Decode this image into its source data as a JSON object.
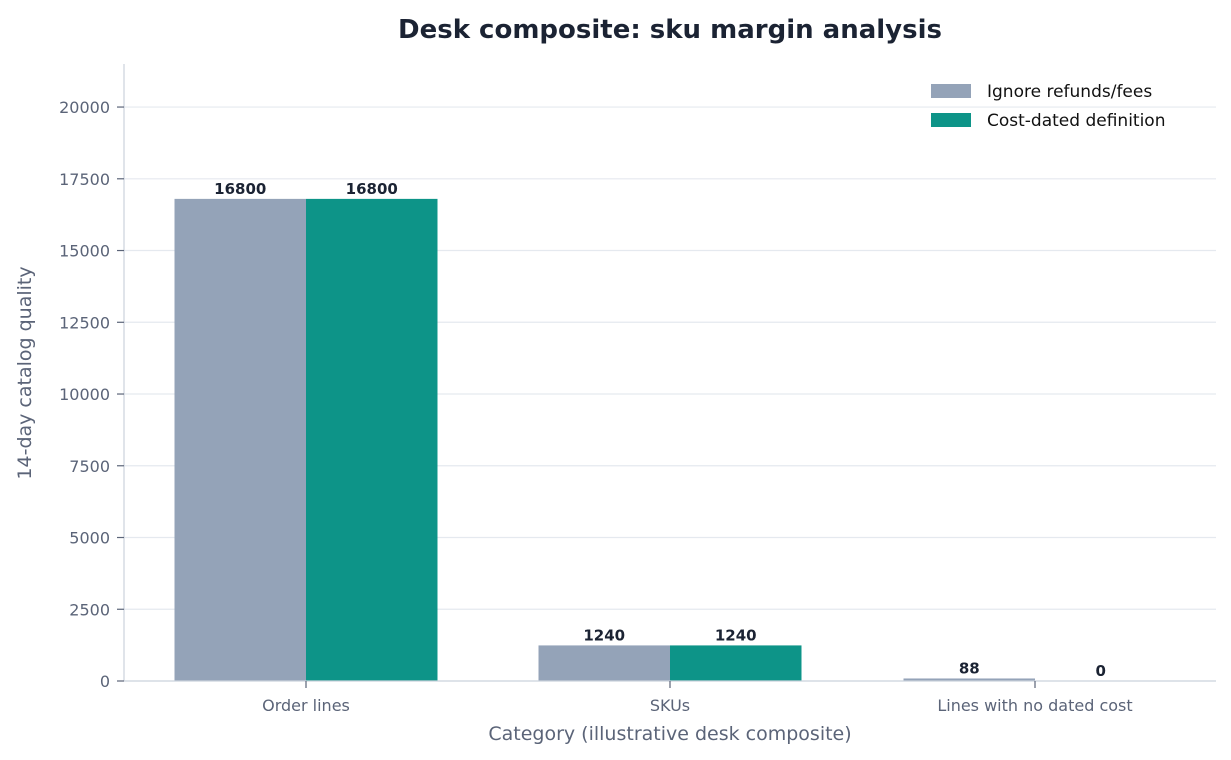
{
  "chart_data": {
    "type": "bar",
    "title": "Desk composite: sku margin analysis",
    "xlabel": "Category (illustrative desk composite)",
    "ylabel": "14-day catalog quality",
    "categories": [
      "Order lines",
      "SKUs",
      "Lines with no dated cost"
    ],
    "series": [
      {
        "name": "Ignore refunds/fees",
        "values": [
          16800,
          1240,
          88
        ],
        "color": "#94a3b8"
      },
      {
        "name": "Cost-dated definition",
        "values": [
          16800,
          1240,
          0
        ],
        "color": "#0d9488"
      }
    ],
    "ylim": [
      0,
      21500
    ],
    "yticks": [
      0,
      2500,
      5000,
      7500,
      10000,
      12500,
      15000,
      17500,
      20000
    ],
    "grid": "horizontal",
    "legend_position": "top-right"
  }
}
